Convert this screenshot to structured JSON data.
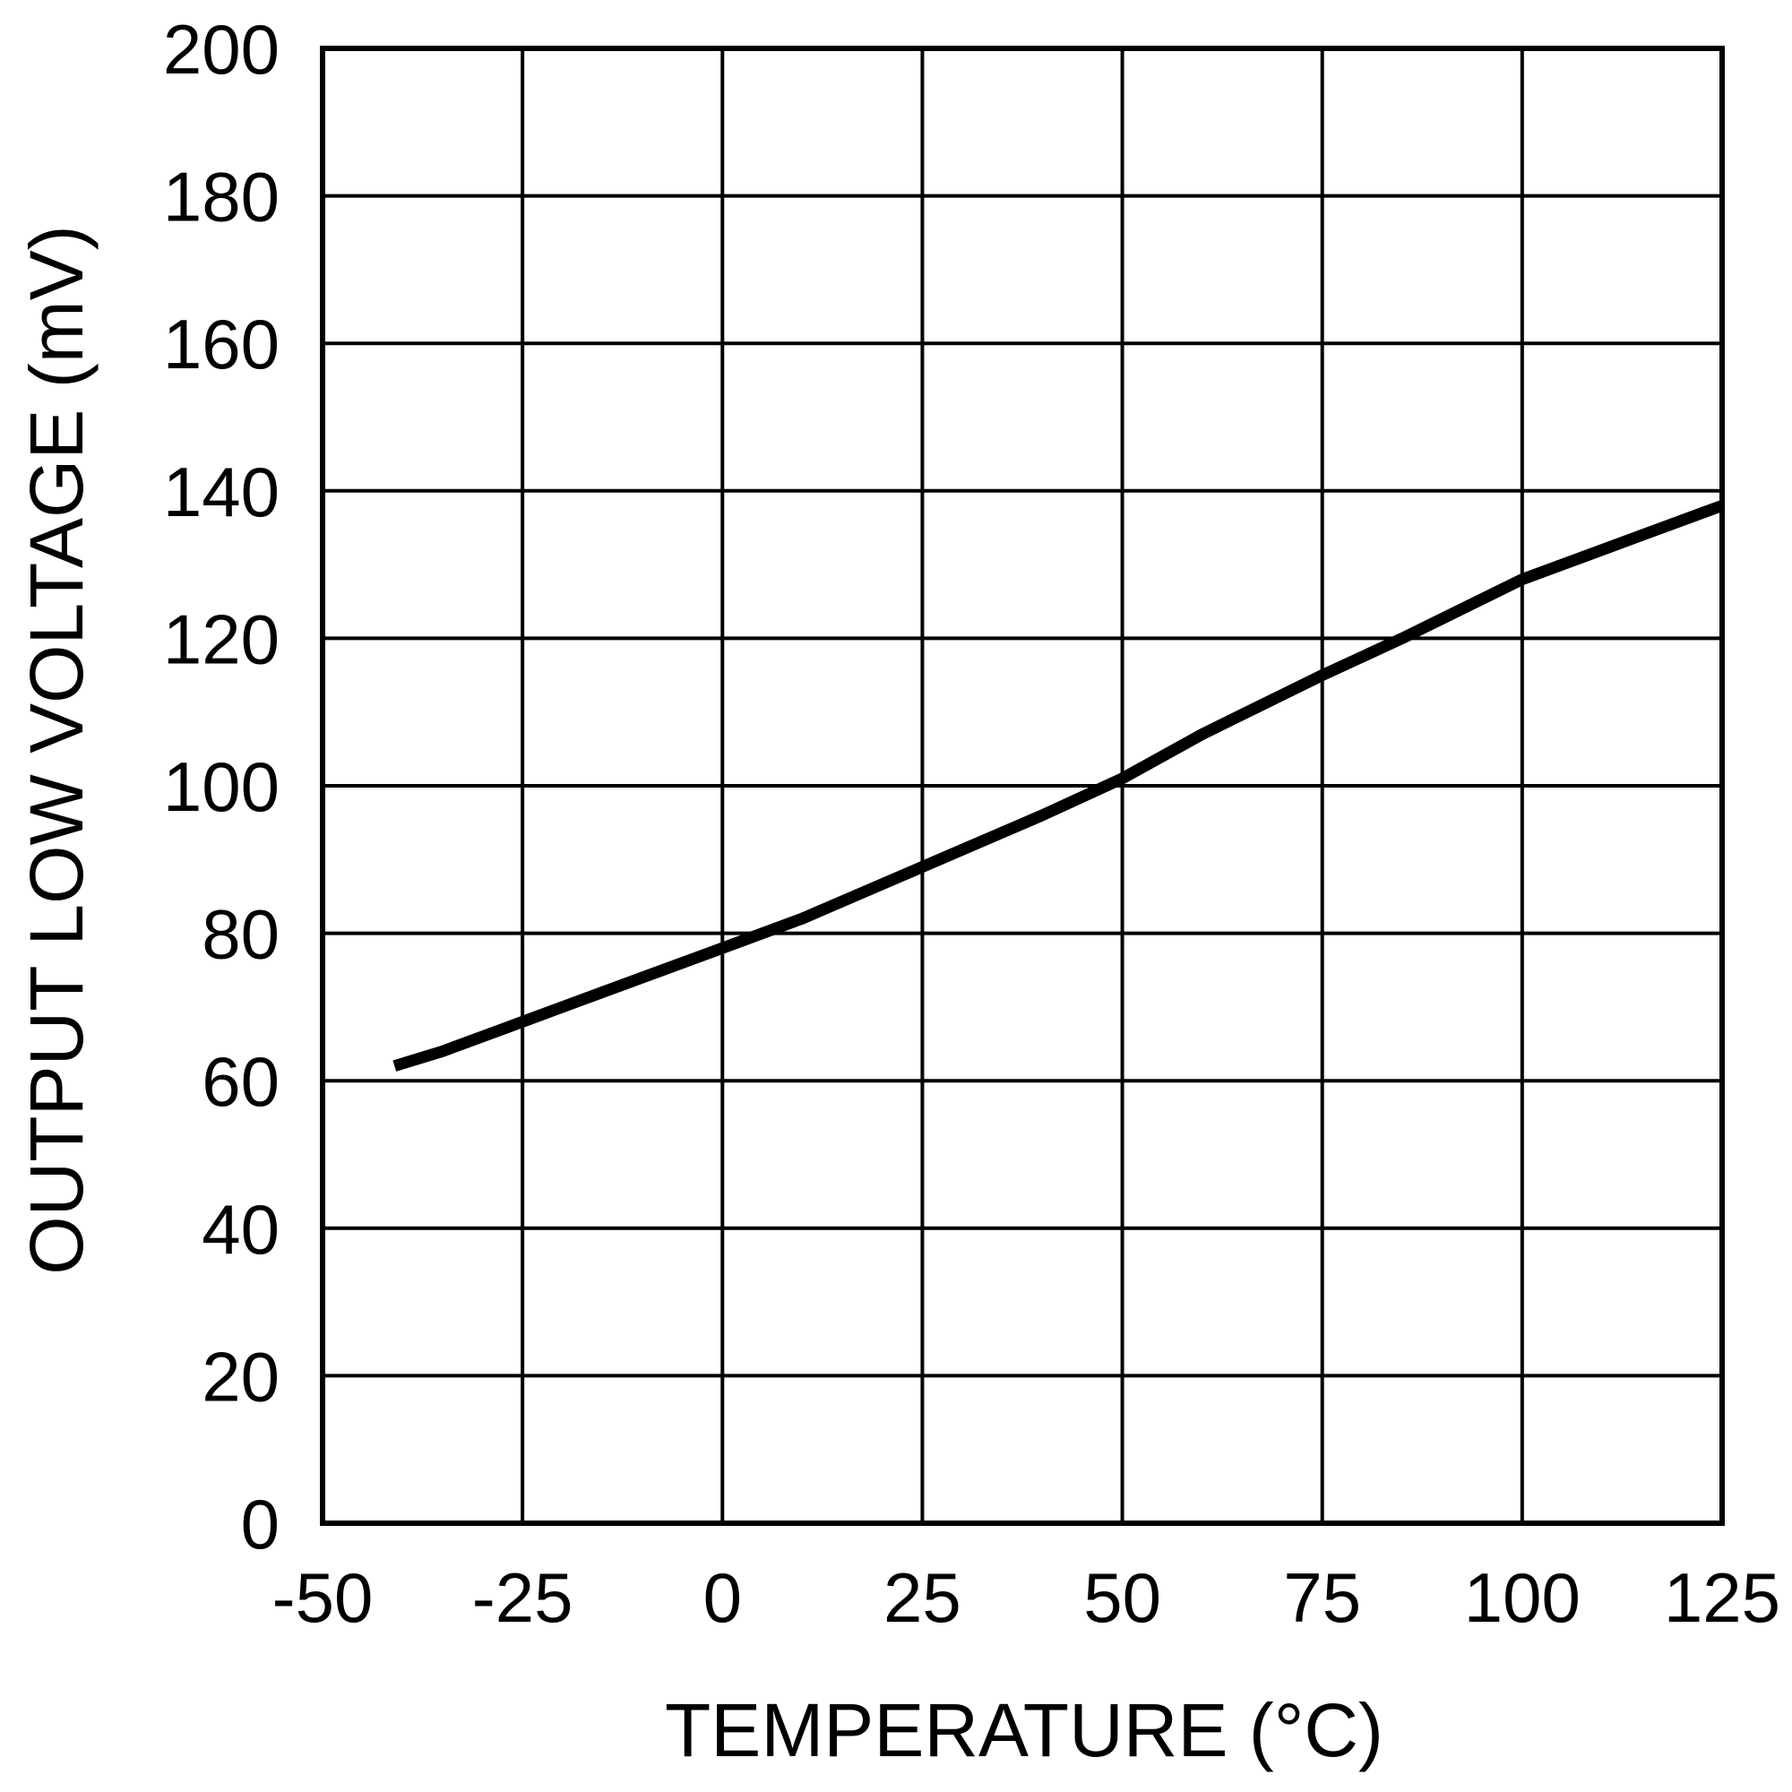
{
  "chart_data": {
    "type": "line",
    "title": "",
    "xlabel": "TEMPERATURE (°C)",
    "ylabel": "OUTPUT LOW VOLTAGE (mV)",
    "xlim": [
      -50,
      125
    ],
    "ylim": [
      0,
      200
    ],
    "x_ticks": [
      -50,
      -25,
      0,
      25,
      50,
      75,
      100,
      125
    ],
    "y_ticks": [
      0,
      20,
      40,
      60,
      80,
      100,
      120,
      140,
      160,
      180,
      200
    ],
    "grid": true,
    "legend": null,
    "series": [
      {
        "name": "Output Low Voltage",
        "color": "#000000",
        "x": [
          -41,
          -35,
          -25,
          -15,
          -5,
          0,
          10,
          25,
          40,
          50,
          60,
          75,
          85,
          100,
          115,
          125
        ],
        "y": [
          62,
          64,
          68,
          72,
          76,
          78,
          82,
          89,
          96,
          101,
          107,
          115,
          120,
          128,
          134,
          138
        ]
      }
    ]
  },
  "labels": {
    "xlabel": "TEMPERATURE (°C)",
    "ylabel": "OUTPUT LOW VOLTAGE (mV)",
    "x_ticks": [
      "-50",
      "-25",
      "0",
      "25",
      "50",
      "75",
      "100",
      "125"
    ],
    "y_ticks": [
      "0",
      "20",
      "40",
      "60",
      "80",
      "100",
      "120",
      "140",
      "160",
      "180",
      "200"
    ]
  },
  "colors": {
    "line": "#000000",
    "grid": "#000000",
    "background": "#ffffff"
  }
}
